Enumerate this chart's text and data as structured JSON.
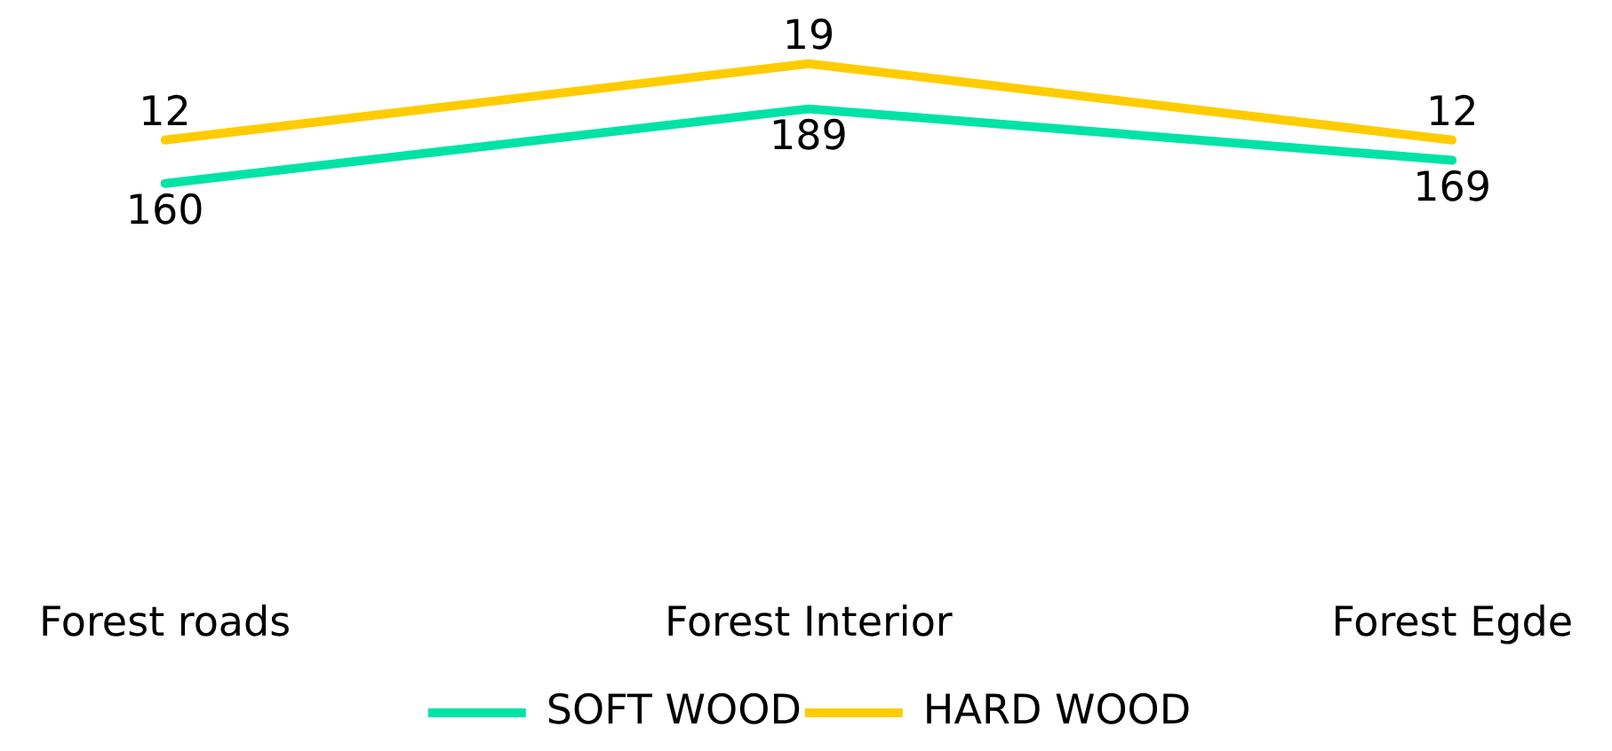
{
  "chart_data": {
    "type": "line",
    "categories": [
      "Forest roads",
      "Forest Interior",
      "Forest Egde"
    ],
    "series": [
      {
        "name": "SOFT WOOD",
        "color": "#00e3a6",
        "values": [
          160,
          189,
          169
        ]
      },
      {
        "name": "HARD WOOD",
        "color": "#ffcc00",
        "values": [
          12,
          19,
          12
        ],
        "axis": "y2"
      }
    ],
    "data_labels": true,
    "legend": "bottom",
    "marker": "none",
    "line_style": "solid",
    "grid": false,
    "tick_labels": "x"
  }
}
